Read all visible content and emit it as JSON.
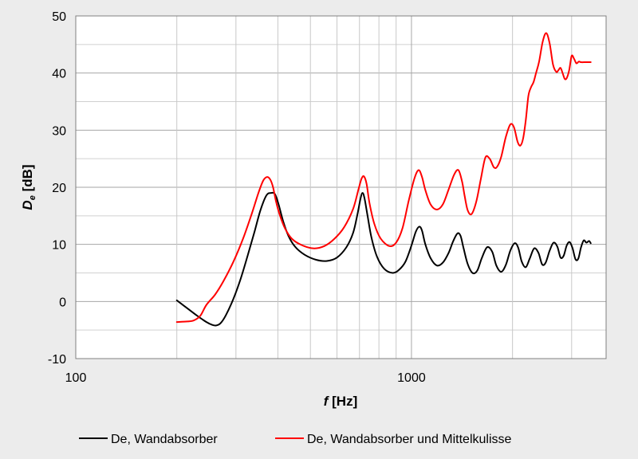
{
  "chart_data": {
    "type": "line",
    "xscale": "log",
    "xlim": [
      100,
      3800
    ],
    "ylim": [
      -10,
      50
    ],
    "xticks": [
      100,
      1000
    ],
    "xtick_labels": [
      "100",
      "1000"
    ],
    "yticks": [
      -10,
      0,
      10,
      20,
      30,
      40,
      50
    ],
    "ytick_labels": [
      "-10",
      "0",
      "10",
      "20",
      "30",
      "40",
      "50"
    ],
    "xlabel_italic": "f",
    "xlabel_rest": " [Hz]",
    "ylabel_italic": "D",
    "ylabel_sub": "e",
    "ylabel_rest": " [dB]",
    "grid": true,
    "legend_position": "bottom",
    "series": [
      {
        "name": "De, Wandabsorber",
        "color": "#000000",
        "x": [
          200,
          215,
          230,
          245,
          255,
          262,
          270,
          280,
          295,
          310,
          325,
          340,
          355,
          370,
          382,
          392,
          402,
          415,
          430,
          450,
          480,
          520,
          560,
          600,
          640,
          670,
          690,
          705,
          715,
          725,
          740,
          760,
          790,
          830,
          880,
          920,
          960,
          1000,
          1030,
          1055,
          1075,
          1100,
          1140,
          1190,
          1240,
          1290,
          1330,
          1370,
          1400,
          1430,
          1470,
          1520,
          1570,
          1620,
          1680,
          1740,
          1790,
          1850,
          1910,
          1970,
          2030,
          2080,
          2130,
          2190,
          2250,
          2320,
          2390,
          2450,
          2510,
          2580,
          2650,
          2720,
          2780,
          2840,
          2900,
          2960,
          3020,
          3080,
          3140,
          3200,
          3260,
          3320,
          3380,
          3420
        ],
        "y": [
          0.2,
          -1.2,
          -2.5,
          -3.6,
          -4.1,
          -4.2,
          -3.8,
          -2.4,
          0.5,
          4.0,
          8.0,
          12.0,
          16.0,
          18.6,
          19.0,
          18.8,
          17.0,
          14.0,
          11.5,
          9.6,
          8.2,
          7.3,
          7.1,
          7.7,
          9.5,
          12.0,
          15.2,
          18.0,
          19.0,
          18.0,
          15.0,
          11.2,
          7.8,
          5.7,
          5.0,
          5.6,
          7.0,
          9.8,
          12.2,
          13.1,
          12.4,
          10.0,
          7.6,
          6.3,
          6.8,
          8.5,
          10.5,
          11.9,
          11.5,
          9.3,
          6.6,
          5.0,
          5.4,
          7.6,
          9.5,
          8.7,
          6.3,
          5.2,
          6.4,
          8.9,
          10.2,
          9.4,
          7.0,
          6.0,
          7.5,
          9.3,
          8.5,
          6.5,
          6.8,
          8.9,
          10.3,
          9.6,
          7.7,
          8.0,
          9.8,
          10.4,
          9.3,
          7.4,
          7.5,
          9.5,
          10.7,
          10.3,
          10.6,
          10.2
        ]
      },
      {
        "name": "De, Wandabsorber und Mittelkulisse",
        "color": "#ff0000",
        "x": [
          200,
          215,
          225,
          235,
          245,
          260,
          275,
          295,
          315,
          335,
          350,
          362,
          372,
          380,
          387,
          395,
          405,
          420,
          440,
          470,
          510,
          550,
          590,
          630,
          670,
          695,
          710,
          722,
          735,
          750,
          775,
          810,
          860,
          900,
          940,
          980,
          1020,
          1050,
          1075,
          1100,
          1140,
          1190,
          1240,
          1290,
          1340,
          1380,
          1415,
          1440,
          1470,
          1510,
          1560,
          1610,
          1660,
          1710,
          1760,
          1800,
          1850,
          1910,
          1970,
          2020,
          2070,
          2110,
          2150,
          2190,
          2230,
          2270,
          2310,
          2350,
          2400,
          2460,
          2520,
          2580,
          2640,
          2700,
          2740,
          2780,
          2820,
          2860,
          2900,
          2950,
          3000,
          3050,
          3100,
          3150,
          3200,
          3260,
          3320,
          3360,
          3400,
          3420
        ],
        "y": [
          -3.6,
          -3.5,
          -3.3,
          -2.5,
          -0.6,
          1.2,
          3.5,
          7.0,
          11.0,
          15.5,
          19.0,
          21.2,
          21.8,
          21.3,
          20.0,
          17.5,
          15.2,
          12.8,
          11.0,
          9.9,
          9.3,
          9.7,
          11.0,
          13.0,
          16.2,
          19.6,
          21.5,
          21.9,
          20.6,
          17.2,
          13.6,
          11.0,
          9.7,
          10.3,
          12.8,
          17.5,
          21.5,
          23.0,
          21.8,
          19.5,
          17.0,
          16.1,
          17.0,
          19.6,
          22.2,
          23.0,
          21.0,
          18.5,
          16.0,
          15.3,
          17.5,
          21.5,
          25.2,
          25.0,
          23.5,
          23.6,
          25.3,
          28.8,
          31.0,
          30.5,
          28.0,
          27.3,
          28.5,
          31.7,
          36.0,
          37.5,
          38.4,
          40.0,
          42.0,
          45.5,
          47.0,
          45.2,
          41.5,
          40.2,
          40.5,
          40.9,
          40.0,
          39.0,
          39.1,
          40.5,
          43.0,
          42.5,
          41.7,
          42.0,
          41.9,
          41.9,
          41.9,
          41.9,
          41.9,
          41.9
        ]
      }
    ]
  }
}
